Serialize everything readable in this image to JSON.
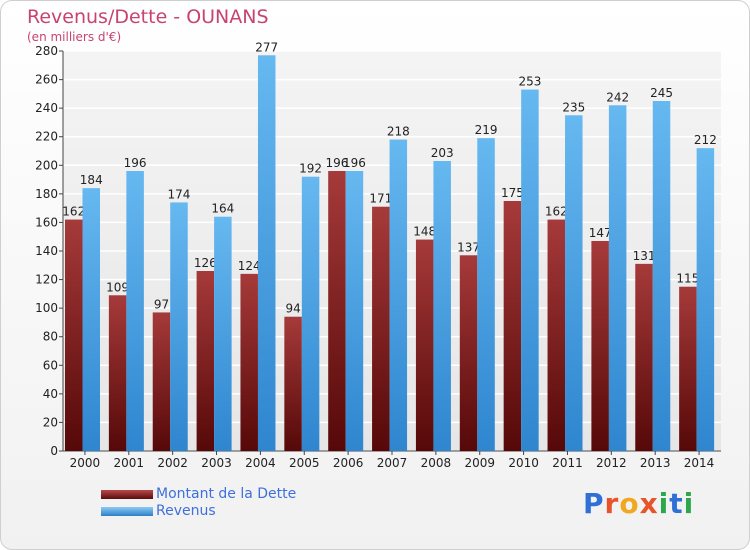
{
  "chart_data": {
    "type": "bar",
    "title": "Revenus/Dette - OUNANS",
    "subtitle": "(en milliers d'€)",
    "categories": [
      "2000",
      "2001",
      "2002",
      "2003",
      "2004",
      "2005",
      "2006",
      "2007",
      "2008",
      "2009",
      "2010",
      "2011",
      "2012",
      "2013",
      "2014"
    ],
    "series": [
      {
        "name": "Montant de la Dette",
        "color": "#7a1818",
        "values": [
          162,
          109,
          97,
          126,
          124,
          94,
          196,
          171,
          148,
          137,
          175,
          162,
          147,
          131,
          115
        ]
      },
      {
        "name": "Revenus",
        "color": "#4aa3e8",
        "values": [
          184,
          196,
          174,
          164,
          277,
          192,
          196,
          218,
          203,
          219,
          253,
          235,
          242,
          245,
          212
        ]
      }
    ],
    "ylim": [
      0,
      280
    ],
    "yticks": [
      0,
      20,
      40,
      60,
      80,
      100,
      120,
      140,
      160,
      180,
      200,
      220,
      240,
      260,
      280
    ],
    "grid": true,
    "legend_position": "bottom-left"
  },
  "logo": {
    "text": "Proxiti",
    "letters": [
      {
        "ch": "P",
        "color": "#2f6fd6"
      },
      {
        "ch": "r",
        "color": "#e8532a"
      },
      {
        "ch": "o",
        "color": "#f0a820"
      },
      {
        "ch": "x",
        "color": "#e8532a"
      },
      {
        "ch": "i",
        "color": "#2aa84a"
      },
      {
        "ch": "t",
        "color": "#2f6fd6"
      },
      {
        "ch": "i",
        "color": "#2aa84a"
      }
    ]
  }
}
